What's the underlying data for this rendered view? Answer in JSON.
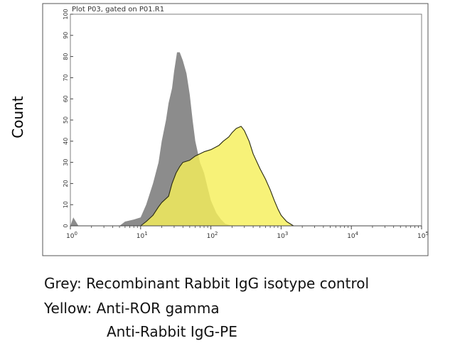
{
  "chart_data": {
    "type": "area",
    "title": "Plot P03, gated on P01.R1",
    "ylabel": "Count",
    "xlabel": "",
    "x_scale": "log",
    "xlim": [
      1,
      100000
    ],
    "ylim": [
      0,
      100
    ],
    "x_ticks": [
      {
        "base": "10",
        "exp": "0",
        "value": 1
      },
      {
        "base": "10",
        "exp": "1",
        "value": 10
      },
      {
        "base": "10",
        "exp": "2",
        "value": 100
      },
      {
        "base": "10",
        "exp": "3",
        "value": 1000
      },
      {
        "base": "10",
        "exp": "4",
        "value": 10000
      },
      {
        "base": "10",
        "exp": "5",
        "value": 100000
      }
    ],
    "y_ticks": [
      "0",
      "10",
      "20",
      "30",
      "40",
      "50",
      "60",
      "70",
      "80",
      "90",
      "100"
    ],
    "grid": false,
    "series": [
      {
        "color": "#8c8c8c",
        "points": [
          [
            1,
            0
          ],
          [
            1.1,
            4
          ],
          [
            1.3,
            0
          ],
          [
            5,
            0
          ],
          [
            6,
            2
          ],
          [
            8,
            3
          ],
          [
            10,
            4
          ],
          [
            12,
            10
          ],
          [
            15,
            20
          ],
          [
            18,
            30
          ],
          [
            20,
            40
          ],
          [
            23,
            50
          ],
          [
            25,
            58
          ],
          [
            28,
            65
          ],
          [
            30,
            73
          ],
          [
            33,
            82
          ],
          [
            36,
            82
          ],
          [
            40,
            78
          ],
          [
            45,
            72
          ],
          [
            50,
            62
          ],
          [
            55,
            50
          ],
          [
            60,
            40
          ],
          [
            70,
            30
          ],
          [
            80,
            25
          ],
          [
            90,
            18
          ],
          [
            100,
            12
          ],
          [
            120,
            6
          ],
          [
            140,
            3
          ],
          [
            160,
            1
          ],
          [
            200,
            0
          ]
        ]
      },
      {
        "color": "#f5ef5a",
        "points": [
          [
            10,
            0
          ],
          [
            12,
            2
          ],
          [
            15,
            5
          ],
          [
            18,
            9
          ],
          [
            20,
            11
          ],
          [
            25,
            14
          ],
          [
            28,
            20
          ],
          [
            32,
            25
          ],
          [
            36,
            28
          ],
          [
            40,
            30
          ],
          [
            50,
            31
          ],
          [
            60,
            33
          ],
          [
            80,
            35
          ],
          [
            100,
            36
          ],
          [
            130,
            38
          ],
          [
            150,
            40
          ],
          [
            180,
            42
          ],
          [
            200,
            44
          ],
          [
            230,
            46
          ],
          [
            270,
            47
          ],
          [
            300,
            45
          ],
          [
            350,
            40
          ],
          [
            400,
            34
          ],
          [
            500,
            27
          ],
          [
            600,
            22
          ],
          [
            700,
            17
          ],
          [
            800,
            12
          ],
          [
            900,
            8
          ],
          [
            1000,
            5
          ],
          [
            1200,
            2
          ],
          [
            1500,
            0
          ]
        ]
      }
    ]
  },
  "legend_lines": [
    "Grey: Recombinant Rabbit IgG isotype control",
    "Yellow: Anti-ROR gamma",
    "Anti-Rabbit IgG-PE"
  ]
}
